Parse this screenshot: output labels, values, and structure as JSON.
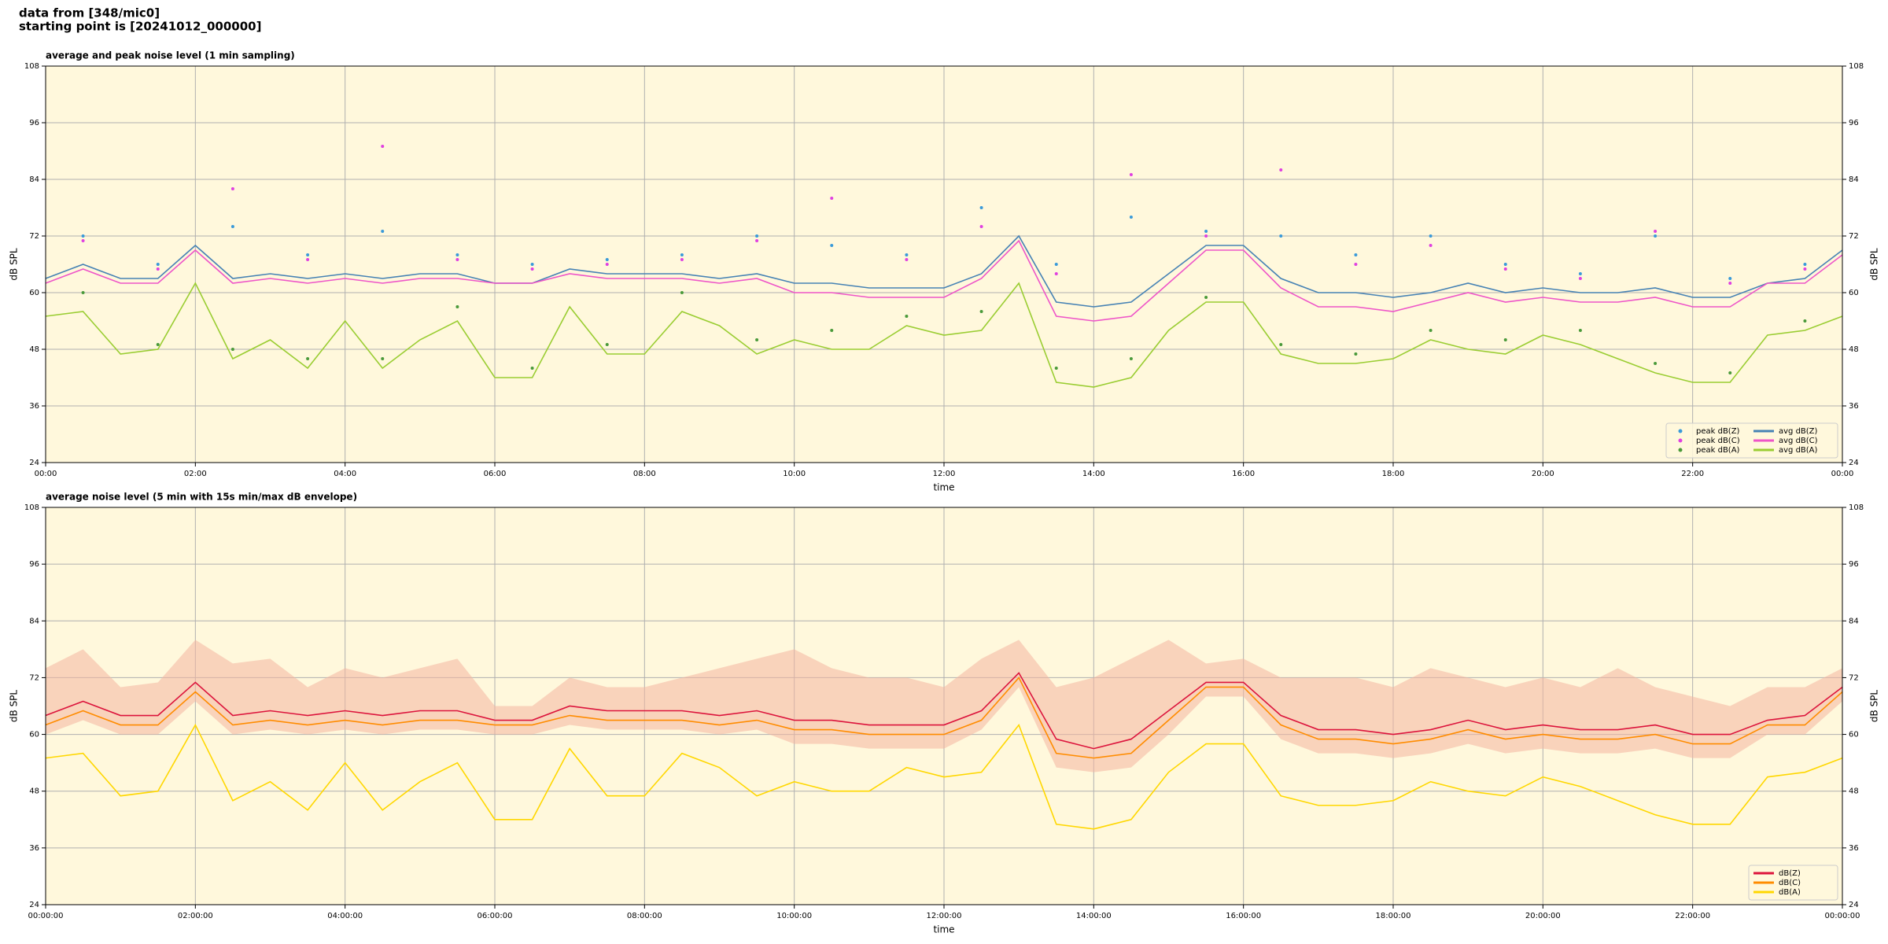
{
  "header": {
    "source": "data from [348/mic0]",
    "start": "starting point is [20241012_000000]"
  },
  "chart_data": [
    {
      "type": "line",
      "title": "average and peak noise level (1 min sampling)",
      "xlabel": "time",
      "ylabel": "dB SPL",
      "background": "#fff8dc",
      "grid": true,
      "legend": "lower right",
      "xlim": [
        0,
        24
      ],
      "ylim": [
        24,
        108
      ],
      "yticks": [
        24,
        36,
        48,
        60,
        72,
        84,
        96,
        108
      ],
      "xticks": [
        {
          "value": 0,
          "label": "00:00"
        },
        {
          "value": 2,
          "label": "02:00"
        },
        {
          "value": 4,
          "label": "04:00"
        },
        {
          "value": 6,
          "label": "06:00"
        },
        {
          "value": 8,
          "label": "08:00"
        },
        {
          "value": 10,
          "label": "10:00"
        },
        {
          "value": 12,
          "label": "12:00"
        },
        {
          "value": 14,
          "label": "14:00"
        },
        {
          "value": 16,
          "label": "16:00"
        },
        {
          "value": 18,
          "label": "18:00"
        },
        {
          "value": 20,
          "label": "20:00"
        },
        {
          "value": 22,
          "label": "22:00"
        },
        {
          "value": 24,
          "label": "00:00"
        }
      ],
      "x": [
        0,
        0.5,
        1,
        1.5,
        2,
        2.5,
        3,
        3.5,
        4,
        4.5,
        5,
        5.5,
        6,
        6.5,
        7,
        7.5,
        8,
        8.5,
        9,
        9.5,
        10,
        10.5,
        11,
        11.5,
        12,
        12.5,
        13,
        13.5,
        14,
        14.5,
        15,
        15.5,
        16,
        16.5,
        17,
        17.5,
        18,
        18.5,
        19,
        19.5,
        20,
        20.5,
        21,
        21.5,
        22,
        22.5,
        23,
        23.5,
        24
      ],
      "series": [
        {
          "name": "peak dB(Z)",
          "kind": "scatter",
          "color": "#3a9ad9",
          "x": [
            0.5,
            1.5,
            2.5,
            3.5,
            4.5,
            5.5,
            6.5,
            7.5,
            8.5,
            9.5,
            10.5,
            11.5,
            12.5,
            13.5,
            14.5,
            15.5,
            16.5,
            17.5,
            18.5,
            19.5,
            20.5,
            21.5,
            22.5,
            23.5
          ],
          "values": [
            72,
            66,
            74,
            68,
            73,
            68,
            66,
            67,
            68,
            72,
            70,
            68,
            78,
            66,
            76,
            73,
            72,
            68,
            72,
            66,
            64,
            72,
            63,
            66
          ]
        },
        {
          "name": "peak dB(C)",
          "kind": "scatter",
          "color": "#e040e0",
          "x": [
            0.5,
            1.5,
            2.5,
            3.5,
            4.5,
            5.5,
            6.5,
            7.5,
            8.5,
            9.5,
            10.5,
            11.5,
            12.5,
            13.5,
            14.5,
            15.5,
            16.5,
            17.5,
            18.5,
            19.5,
            20.5,
            21.5,
            22.5,
            23.5
          ],
          "values": [
            71,
            65,
            82,
            67,
            91,
            67,
            65,
            66,
            67,
            71,
            80,
            67,
            74,
            64,
            85,
            72,
            86,
            66,
            70,
            65,
            63,
            73,
            62,
            65
          ]
        },
        {
          "name": "peak dB(A)",
          "kind": "scatter",
          "color": "#4a9a3a",
          "x": [
            0.5,
            1.5,
            2.5,
            3.5,
            4.5,
            5.5,
            6.5,
            7.5,
            8.5,
            9.5,
            10.5,
            11.5,
            12.5,
            13.5,
            14.5,
            15.5,
            16.5,
            17.5,
            18.5,
            19.5,
            20.5,
            21.5,
            22.5,
            23.5
          ],
          "values": [
            60,
            49,
            48,
            46,
            46,
            57,
            44,
            49,
            60,
            50,
            52,
            55,
            56,
            44,
            46,
            59,
            49,
            47,
            52,
            50,
            52,
            45,
            43,
            54
          ]
        },
        {
          "name": "avg dB(Z)",
          "kind": "line",
          "color": "#4682b4",
          "values": [
            63,
            66,
            63,
            63,
            70,
            63,
            64,
            63,
            64,
            63,
            64,
            64,
            62,
            62,
            65,
            64,
            64,
            64,
            63,
            64,
            62,
            62,
            61,
            61,
            61,
            64,
            72,
            58,
            57,
            58,
            64,
            70,
            70,
            63,
            60,
            60,
            59,
            60,
            62,
            60,
            61,
            60,
            60,
            61,
            59,
            59,
            62,
            63,
            69
          ]
        },
        {
          "name": "avg dB(C)",
          "kind": "line",
          "color": "#ee55c8",
          "values": [
            62,
            65,
            62,
            62,
            69,
            62,
            63,
            62,
            63,
            62,
            63,
            63,
            62,
            62,
            64,
            63,
            63,
            63,
            62,
            63,
            60,
            60,
            59,
            59,
            59,
            63,
            71,
            55,
            54,
            55,
            62,
            69,
            69,
            61,
            57,
            57,
            56,
            58,
            60,
            58,
            59,
            58,
            58,
            59,
            57,
            57,
            62,
            62,
            68
          ]
        },
        {
          "name": "avg dB(A)",
          "kind": "line",
          "color": "#9acd32",
          "values": [
            55,
            56,
            47,
            48,
            62,
            46,
            50,
            44,
            54,
            44,
            50,
            54,
            42,
            42,
            57,
            47,
            47,
            56,
            53,
            47,
            50,
            48,
            48,
            53,
            51,
            52,
            62,
            41,
            40,
            42,
            52,
            58,
            58,
            47,
            45,
            45,
            46,
            50,
            48,
            47,
            51,
            49,
            46,
            43,
            41,
            41,
            51,
            52,
            55
          ]
        }
      ]
    },
    {
      "type": "line",
      "title": "average noise level (5 min with 15s min/max dB envelope)",
      "xlabel": "time",
      "ylabel": "dB SPL",
      "background": "#fff8dc",
      "grid": true,
      "legend": "lower right",
      "xlim": [
        0,
        24
      ],
      "ylim": [
        24,
        108
      ],
      "yticks": [
        24,
        36,
        48,
        60,
        72,
        84,
        96,
        108
      ],
      "xticks": [
        {
          "value": 0,
          "label": "00:00:00"
        },
        {
          "value": 2,
          "label": "02:00:00"
        },
        {
          "value": 4,
          "label": "04:00:00"
        },
        {
          "value": 6,
          "label": "06:00:00"
        },
        {
          "value": 8,
          "label": "08:00:00"
        },
        {
          "value": 10,
          "label": "10:00:00"
        },
        {
          "value": 12,
          "label": "12:00:00"
        },
        {
          "value": 14,
          "label": "14:00:00"
        },
        {
          "value": 16,
          "label": "16:00:00"
        },
        {
          "value": 18,
          "label": "18:00:00"
        },
        {
          "value": 20,
          "label": "20:00:00"
        },
        {
          "value": 22,
          "label": "22:00:00"
        },
        {
          "value": 24,
          "label": "00:00:00"
        }
      ],
      "x": [
        0,
        0.5,
        1,
        1.5,
        2,
        2.5,
        3,
        3.5,
        4,
        4.5,
        5,
        5.5,
        6,
        6.5,
        7,
        7.5,
        8,
        8.5,
        9,
        9.5,
        10,
        10.5,
        11,
        11.5,
        12,
        12.5,
        13,
        13.5,
        14,
        14.5,
        15,
        15.5,
        16,
        16.5,
        17,
        17.5,
        18,
        18.5,
        19,
        19.5,
        20,
        20.5,
        21,
        21.5,
        22,
        22.5,
        23,
        23.5,
        24
      ],
      "envelope": {
        "color": "#f4b4a0",
        "upper": [
          74,
          78,
          70,
          71,
          80,
          75,
          76,
          70,
          74,
          72,
          74,
          76,
          66,
          66,
          72,
          70,
          70,
          72,
          74,
          76,
          78,
          74,
          72,
          72,
          70,
          76,
          80,
          70,
          72,
          76,
          80,
          75,
          76,
          72,
          72,
          72,
          70,
          74,
          72,
          70,
          72,
          70,
          74,
          70,
          68,
          66,
          70,
          70,
          74
        ],
        "lower": [
          60,
          63,
          60,
          60,
          67,
          60,
          61,
          60,
          61,
          60,
          61,
          61,
          60,
          60,
          62,
          61,
          61,
          61,
          60,
          61,
          58,
          58,
          57,
          57,
          57,
          61,
          70,
          53,
          52,
          53,
          60,
          68,
          68,
          59,
          56,
          56,
          55,
          56,
          58,
          56,
          57,
          56,
          56,
          57,
          55,
          55,
          60,
          60,
          67
        ]
      },
      "series": [
        {
          "name": "dB(Z)",
          "kind": "line",
          "color": "#dc143c",
          "values": [
            64,
            67,
            64,
            64,
            71,
            64,
            65,
            64,
            65,
            64,
            65,
            65,
            63,
            63,
            66,
            65,
            65,
            65,
            64,
            65,
            63,
            63,
            62,
            62,
            62,
            65,
            73,
            59,
            57,
            59,
            65,
            71,
            71,
            64,
            61,
            61,
            60,
            61,
            63,
            61,
            62,
            61,
            61,
            62,
            60,
            60,
            63,
            64,
            70
          ]
        },
        {
          "name": "dB(C)",
          "kind": "line",
          "color": "#ff8c00",
          "values": [
            62,
            65,
            62,
            62,
            69,
            62,
            63,
            62,
            63,
            62,
            63,
            63,
            62,
            62,
            64,
            63,
            63,
            63,
            62,
            63,
            61,
            61,
            60,
            60,
            60,
            63,
            72,
            56,
            55,
            56,
            63,
            70,
            70,
            62,
            59,
            59,
            58,
            59,
            61,
            59,
            60,
            59,
            59,
            60,
            58,
            58,
            62,
            62,
            69
          ]
        },
        {
          "name": "dB(A)",
          "kind": "line",
          "color": "#ffd700",
          "values": [
            55,
            56,
            47,
            48,
            62,
            46,
            50,
            44,
            54,
            44,
            50,
            54,
            42,
            42,
            57,
            47,
            47,
            56,
            53,
            47,
            50,
            48,
            48,
            53,
            51,
            52,
            62,
            41,
            40,
            42,
            52,
            58,
            58,
            47,
            45,
            45,
            46,
            50,
            48,
            47,
            51,
            49,
            46,
            43,
            41,
            41,
            51,
            52,
            55
          ]
        }
      ]
    }
  ]
}
